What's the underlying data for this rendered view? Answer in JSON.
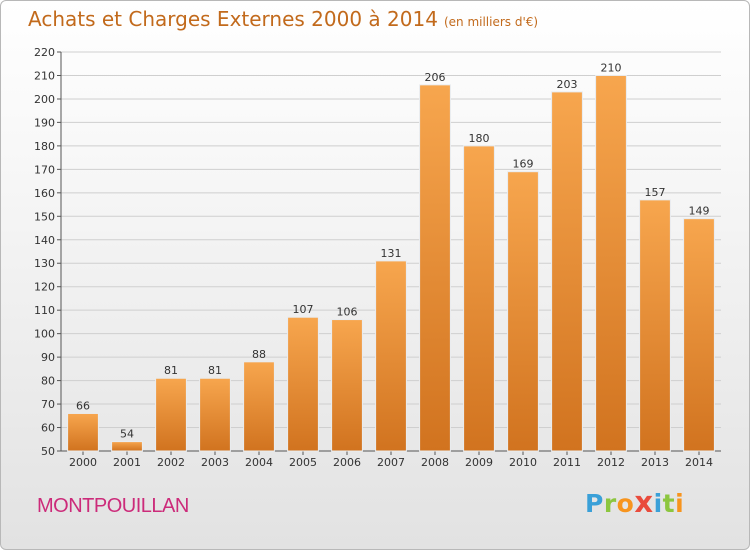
{
  "title": "Achats et Charges Externes 2000 à 2014",
  "subtitle": "(en milliers d'€)",
  "commune": "MONTPOUILLAN",
  "logo": {
    "letters": [
      "P",
      "r",
      "o",
      "x",
      "i",
      "t",
      "i"
    ]
  },
  "colors": {
    "bar_light": "#f7a64e",
    "bar_dark": "#d1731f",
    "title": "#c26a1c",
    "commune": "#cc2b7a",
    "grid": "#cfcfcf"
  },
  "chart_data": {
    "type": "bar",
    "categories": [
      "2000",
      "2001",
      "2002",
      "2003",
      "2004",
      "2005",
      "2006",
      "2007",
      "2008",
      "2009",
      "2010",
      "2011",
      "2012",
      "2013",
      "2014"
    ],
    "values": [
      66,
      54,
      81,
      81,
      88,
      107,
      106,
      131,
      206,
      180,
      169,
      203,
      210,
      157,
      149
    ],
    "title": "Achats et Charges Externes 2000 à 2014",
    "subtitle": "(en milliers d'€)",
    "xlabel": "",
    "ylabel": "",
    "ylim": [
      50,
      220
    ],
    "yticks": [
      50,
      60,
      70,
      80,
      90,
      100,
      110,
      120,
      130,
      140,
      150,
      160,
      170,
      180,
      190,
      200,
      210,
      220
    ],
    "grid": true,
    "data_labels": true
  }
}
